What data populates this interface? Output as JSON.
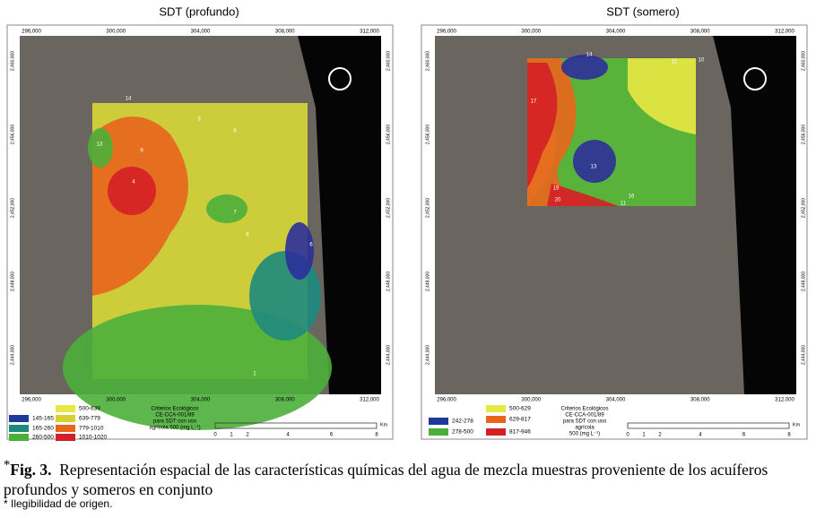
{
  "panels": [
    {
      "title": "SDT (profundo)",
      "x_ticks": [
        "296,000",
        "300,000",
        "304,000",
        "308,000",
        "312,000"
      ],
      "y_ticks": [
        "2,460,000",
        "2,456,000",
        "2,452,000",
        "2,448,000",
        "2,444,000"
      ],
      "points": [
        "14",
        "3",
        "8",
        "13",
        "9",
        "4",
        "7",
        "6",
        "6",
        "1"
      ],
      "legend": [
        "145-165",
        "165-260",
        "260-500",
        "500-639",
        "639-779",
        "779-1010",
        "1010-1020"
      ],
      "criteria": [
        "Criterios Ecológicos",
        "CE-CCA-001/89",
        "para SDT con uso",
        "agrícola 500 (mg L⁻¹)"
      ],
      "scale": [
        "0",
        "1",
        "2",
        "4",
        "6",
        "8"
      ],
      "scale_unit": "Km"
    },
    {
      "title": "SDT (somero)",
      "x_ticks": [
        "296,000",
        "300,000",
        "304,000",
        "308,000",
        "312,000"
      ],
      "y_ticks": [
        "2,460,000",
        "2,456,000",
        "2,452,000",
        "2,448,000",
        "2,444,000"
      ],
      "points": [
        "14",
        "11",
        "10",
        "17",
        "13",
        "19",
        "20",
        "16",
        "11"
      ],
      "legend": [
        "242-278",
        "278-500",
        "500-629",
        "629-817",
        "817-946"
      ],
      "criteria": [
        "Criterios Ecológicos",
        "CE-CCA-001/89",
        "para SDT con uso",
        "agrícola",
        "500 (mg L⁻¹)"
      ],
      "scale": [
        "0",
        "1",
        "2",
        "4",
        "6",
        "8"
      ],
      "scale_unit": "Km"
    }
  ],
  "caption": {
    "marker": "*",
    "label": "Fig. 3.",
    "text": "Representación espacial de las características químicas del agua de mezcla muestras proveniente de los acuíferos profundos y someros en conjunto"
  },
  "footnote": "* Ilegibilidad de origen."
}
